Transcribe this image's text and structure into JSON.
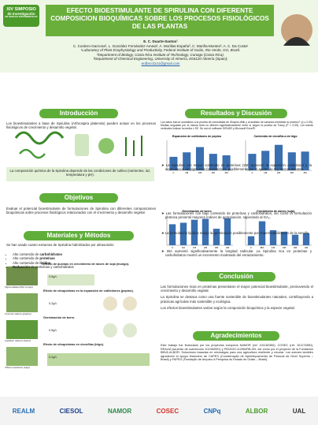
{
  "header": {
    "logo": [
      "XIV SIMPOSIO",
      "de Investigación",
      "EN CIENCIAS EXPERIMENTALES"
    ],
    "title": "EFECTO BIOESTIMULANTE DE SPIRULINA CON DIFERENTE COMPOSICION BIOQUÍMICAS SOBRE LOS PROCESOS FISIOLÓGICOS DE LAS PLANTAS",
    "presenter": "E. C. Duarte-Santos¹",
    "authors": "C. Cordero-Garzona², L. González Fernández-Ameia³, A. Morillas-España³, C. Mariña-Montes³, A. C. Da Costa¹",
    "affiliations": [
      "¹Laboratory of Plant Ecophysiology and Productivity, Federal Institute of Goiás, Rio Verde, GO, Brazil.",
      "²Department of Biology, Costa Rica Institute of Technology, Cartago (Costa Rica).",
      "³Department of Chemical Engineering, University of Almería, E04120 Almería (Spain);"
    ],
    "email": "erdbrcol141@gmail.com"
  },
  "introduccion": {
    "heading": "Introducción",
    "text": "Los bioestimulantes a base de Spirulina (Arthrospira platensis) pueden actuar en los procesos fisiológicos de crecimiento y desarrollo vegetal.",
    "note": "La composición química de la Spirulina depende de las condiciones de cultivo (nutrientes, luz, temperatura y pH)."
  },
  "objetivos": {
    "heading": "Objetivos",
    "text": "Evaluar el potencial bioestimulante de formulaciones de Spirulina con diferentes composiciones bioquímicas sobre procesos fisiológicos relacionados con el crecimiento y desarrollo vegetal."
  },
  "metodos": {
    "heading": "Materiales y Métodos",
    "text": "Se han usado cuatro extractos de Spirulina hidrolizados por ultrasonido:",
    "items": [
      {
        "pre": "Alto contenido de ",
        "bold": "carbohidratos"
      },
      {
        "pre": "Alto contenido de ",
        "bold": "proteínas"
      },
      {
        "pre": "Alto contenido de ",
        "bold": "lípidos"
      },
      {
        "pre": "",
        "bold": "Reducción",
        "post": " de proteínas y carbohidratos"
      }
    ],
    "panels": [
      "Efecto de auxinas en crecimiento de raíces de soja (mungo).",
      "Efecto de citoquininas en la expansión de cotiledones (pepino).",
      "Germinación de berro",
      "Efecto de citoquininas en clorofilas (trigo)."
    ],
    "doses": [
      "0,5g/L",
      "0,2g/L",
      "0,5g/L",
      "0,2g/L"
    ],
    "species": [
      "Vigna radiata (frijol mungo)",
      "Cucumis sativus (pepino)",
      "Lepidium sativum (berro)",
      "Triticum aestivum (trigo)"
    ]
  },
  "resultados": {
    "heading": "Resultados y Discusión",
    "text": "Los datos fueron sometidos a la prueba de normalidad de Shapiro-Wilk y al análisis de varianza mediante la prueba F (p ≤ 0,05). Medias seguidas por la misma letra no difieren significativamente entre sí según la prueba de Tukey (P < 0,05). Los barras verticales indican la media ± SE. Se usó el software SISVAR y Microsoft Excel®.",
    "bullets": [
      "La Spirulina con mayor contenido de proteínas (2M) aumentó la expansión cotiledonar y la acumulación de pigmentos fotosintéticos, posiblemente por el aporte de N y micronutrientes.",
      "Las formulaciones con bajo contenido de proteínas y carbohidratos, así como la formulación proteica presentó mayores índices de germinación, superando al GA₃.",
      "La formulación lipídica redujo la germinación posiblemente por impermeabilización de la semilla.",
      "IBA aumentó significativamente la longitud radicular. La Spirulina rica en proteínas y carbohidratos mostró un incremento moderado del enraizamiento."
    ]
  },
  "charts": [
    {
      "type": "bar",
      "title": "Expansión de cotiledones de pepino",
      "categories": [
        "C",
        "1M",
        "2M",
        "3M",
        "4M"
      ],
      "values": [
        0.18,
        0.24,
        0.31,
        0.22,
        0.2
      ],
      "ylim": [
        0,
        0.4
      ],
      "color": "#3a6fb0"
    },
    {
      "type": "bar",
      "title": "Contenido de clorofila a de trigo",
      "categories": [
        "C",
        "1M",
        "2M",
        "3M",
        "4M"
      ],
      "values": [
        1.1,
        1.3,
        1.7,
        1.2,
        1.25
      ],
      "ylim": [
        0,
        2
      ],
      "color": "#3a6fb0"
    },
    {
      "type": "bar",
      "title": "Germinación de berro",
      "categories": [
        "C",
        "GA",
        "1M",
        "2M",
        "3M",
        "4M"
      ],
      "values": [
        70,
        75,
        85,
        88,
        55,
        90
      ],
      "ylim": [
        0,
        100
      ],
      "color": "#3a6fb0"
    },
    {
      "type": "bar",
      "title": "Crecimiento de raíces (soja)",
      "categories": [
        "C",
        "IBA",
        "1M",
        "2M",
        "3M",
        "4M"
      ],
      "values": [
        3,
        8,
        5,
        4.5,
        3.5,
        4
      ],
      "ylim": [
        0,
        10
      ],
      "color": "#3a6fb0"
    }
  ],
  "conclusion": {
    "heading": "Conclusión",
    "paragraphs": [
      "Las formulaciones ricas en proteínas presentaron el mayor potencial bioestimulante, promoviendo el crecimiento y desarrollo vegetal.",
      "La Spirulina se destaca como una fuente sostenible de bioestimulantes naturales, contribuyendo a prácticas agrícolas más sostenible y ecológica.",
      "Los efectos bioestimulantes varían según la composición bioquímica y la especie vegetal."
    ]
  },
  "agradecimientos": {
    "heading": "Agradecimientos",
    "text": "Este trabajo fue financiado por los proyectos europeos NAMOR (ref. 101182360), COSEC (ref. 101172850), REALM (acuerdo de subvención 101060991) y PID2020-112964RB-I00, así como por el proyecto de la Fundación BBVA ALBOR: Soluciones basadas en microalgas para una agricultura resiliente y circular. Los autores también agradecen el apoyo financiero de CAPES (Coordenação de Aperfeiçoamento de Pessoal de Nível Superior – Brasil) y FAPEG (Fundação de Amparo à Pesquisa do Estado de Goiás – Brasil)."
  },
  "footer": {
    "logos": [
      "REALM",
      "CIESOL",
      "NAMOR",
      "COSEC",
      "CNPq",
      "ALBOR",
      "UAL"
    ]
  }
}
